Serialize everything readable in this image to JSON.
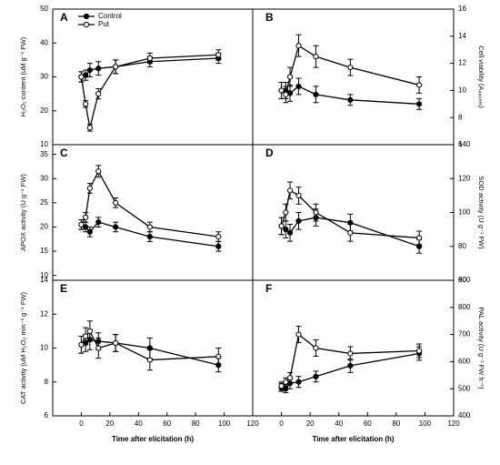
{
  "chart_data": [
    {
      "type": "line",
      "panel_label": "A",
      "ylabel": "H₂O₂ content (uM g⁻¹ FW)",
      "y_axis_side": "left",
      "legend": "upper left",
      "x": [
        0,
        3,
        6,
        12,
        24,
        48,
        96
      ],
      "xlim": [
        -20,
        120
      ],
      "ylim": [
        10,
        50
      ],
      "yticks": [
        10,
        20,
        30,
        40,
        50
      ],
      "series": [
        {
          "name": "Control",
          "color": "#000000",
          "marker": "filled",
          "values": [
            30,
            30.5,
            32,
            32.5,
            33,
            34.5,
            35.5
          ],
          "errors": [
            1.5,
            1.5,
            2,
            2,
            2,
            1.5,
            1.5
          ]
        },
        {
          "name": "Put",
          "color": "#000000",
          "marker": "open",
          "values": [
            30,
            22,
            15,
            25,
            33,
            35.5,
            36.5
          ],
          "errors": [
            1.5,
            1,
            1,
            1.5,
            2,
            1.5,
            1.5
          ]
        }
      ]
    },
    {
      "type": "line",
      "panel_label": "B",
      "ylabel": "Cell viability (A₄₉₀ₙₘ)",
      "y_axis_side": "right",
      "x": [
        0,
        3,
        6,
        12,
        24,
        48,
        96
      ],
      "xlim": [
        -20,
        120
      ],
      "ylim": [
        6,
        16
      ],
      "yticks": [
        6,
        8,
        10,
        12,
        14,
        16
      ],
      "series": [
        {
          "color": "#000000",
          "marker": "filled",
          "values": [
            10,
            10,
            9.8,
            10.3,
            9.7,
            9.3,
            9
          ],
          "errors": [
            0.6,
            0.6,
            0.6,
            0.6,
            0.6,
            0.4,
            0.4
          ]
        },
        {
          "color": "#000000",
          "marker": "open",
          "values": [
            10,
            9.7,
            11,
            13.3,
            12.5,
            11.7,
            10.4
          ],
          "errors": [
            0.6,
            0.6,
            0.7,
            0.8,
            0.8,
            0.6,
            0.6
          ]
        }
      ]
    },
    {
      "type": "line",
      "panel_label": "C",
      "ylabel": "APOX activity (U g⁻¹ FW)",
      "y_axis_side": "left",
      "x": [
        0,
        3,
        6,
        12,
        24,
        48,
        96
      ],
      "xlim": [
        -20,
        120
      ],
      "ylim": [
        9,
        37
      ],
      "yticks": [
        10,
        15,
        20,
        25,
        30,
        35
      ],
      "series": [
        {
          "color": "#000000",
          "marker": "filled",
          "values": [
            20.5,
            20,
            19,
            21,
            20,
            18,
            16
          ],
          "errors": [
            1,
            1,
            1,
            1,
            1,
            1,
            1
          ]
        },
        {
          "color": "#000000",
          "marker": "open",
          "values": [
            20.5,
            22,
            28,
            31.5,
            25,
            20,
            18
          ],
          "errors": [
            1,
            1,
            1,
            1.2,
            1,
            1,
            1
          ]
        }
      ]
    },
    {
      "type": "line",
      "panel_label": "D",
      "ylabel": "SOD activity (U g⁻¹ FW)",
      "y_axis_side": "right",
      "x": [
        0,
        3,
        6,
        12,
        24,
        48,
        96
      ],
      "xlim": [
        -20,
        120
      ],
      "ylim": [
        60,
        140
      ],
      "yticks": [
        60,
        80,
        100,
        120,
        140
      ],
      "series": [
        {
          "color": "#000000",
          "marker": "filled",
          "values": [
            92,
            90,
            88,
            95,
            97,
            94,
            80
          ],
          "errors": [
            5,
            5,
            5,
            5,
            5,
            5,
            4
          ]
        },
        {
          "color": "#000000",
          "marker": "open",
          "values": [
            92,
            100,
            113,
            110,
            100,
            88,
            85
          ],
          "errors": [
            5,
            5,
            5,
            5,
            5,
            5,
            4
          ]
        }
      ]
    },
    {
      "type": "line",
      "panel_label": "E",
      "ylabel": "CAT activity (uM H₂O₂ min⁻¹ g⁻¹ FW)",
      "y_axis_side": "left",
      "xlabel": "Time after elicitation (h)",
      "x": [
        0,
        3,
        6,
        12,
        24,
        48,
        96
      ],
      "xlim": [
        -20,
        120
      ],
      "xticks": [
        0,
        20,
        40,
        60,
        80,
        100,
        120
      ],
      "ylim": [
        6,
        14
      ],
      "yticks": [
        6,
        8,
        10,
        12,
        14
      ],
      "series": [
        {
          "color": "#000000",
          "marker": "filled",
          "values": [
            10.2,
            10.3,
            10.5,
            10.4,
            10.3,
            10,
            9
          ],
          "errors": [
            0.5,
            0.5,
            0.6,
            0.5,
            0.5,
            0.6,
            0.4
          ]
        },
        {
          "color": "#000000",
          "marker": "open",
          "values": [
            10.2,
            10.7,
            11,
            10,
            10.3,
            9.3,
            9.5
          ],
          "errors": [
            0.5,
            0.5,
            0.6,
            0.6,
            0.5,
            0.6,
            0.5
          ]
        }
      ]
    },
    {
      "type": "line",
      "panel_label": "F",
      "ylabel": "PAL activity (U g⁻¹ FW h⁻¹)",
      "y_axis_side": "right",
      "xlabel": "Time after elicitation (h)",
      "x": [
        0,
        3,
        6,
        12,
        24,
        48,
        96
      ],
      "xlim": [
        -20,
        120
      ],
      "xticks": [
        0,
        20,
        40,
        60,
        80,
        100,
        120
      ],
      "ylim": [
        400,
        900
      ],
      "yticks": [
        400,
        500,
        600,
        700,
        800,
        900
      ],
      "series": [
        {
          "color": "#000000",
          "marker": "filled",
          "values": [
            505,
            500,
            520,
            525,
            545,
            585,
            630
          ],
          "errors": [
            15,
            15,
            20,
            20,
            20,
            25,
            25
          ]
        },
        {
          "color": "#000000",
          "marker": "open",
          "values": [
            510,
            525,
            540,
            700,
            650,
            630,
            640
          ],
          "errors": [
            15,
            15,
            20,
            30,
            30,
            25,
            25
          ]
        }
      ]
    }
  ]
}
